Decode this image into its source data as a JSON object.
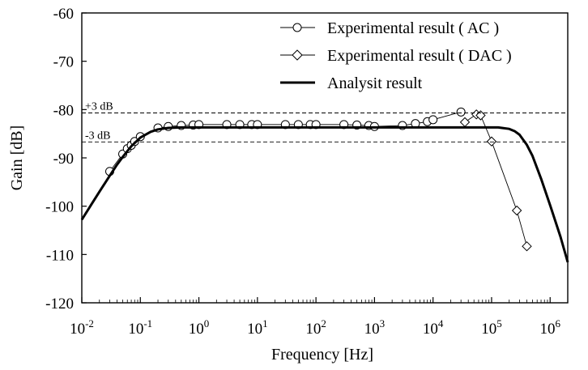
{
  "chart_data": {
    "type": "line",
    "xlabel": "Frequency [Hz]",
    "ylabel": "Gain [dB]",
    "x_scale": "log",
    "xlim": [
      0.01,
      2000000
    ],
    "ylim": [
      -120,
      -60
    ],
    "x_ticks": [
      {
        "value": 0.01,
        "base": "10",
        "exp": "-2"
      },
      {
        "value": 0.1,
        "base": "10",
        "exp": "-1"
      },
      {
        "value": 1,
        "base": "10",
        "exp": "0"
      },
      {
        "value": 10,
        "base": "10",
        "exp": "1"
      },
      {
        "value": 100,
        "base": "10",
        "exp": "2"
      },
      {
        "value": 1000,
        "base": "10",
        "exp": "3"
      },
      {
        "value": 10000,
        "base": "10",
        "exp": "4"
      },
      {
        "value": 100000,
        "base": "10",
        "exp": "5"
      },
      {
        "value": 1000000,
        "base": "10",
        "exp": "6"
      }
    ],
    "y_ticks": [
      {
        "value": -60,
        "label": "-60"
      },
      {
        "value": -70,
        "label": "-70"
      },
      {
        "value": -80,
        "label": "-80"
      },
      {
        "value": -90,
        "label": "-90"
      },
      {
        "value": -100,
        "label": "-100"
      },
      {
        "value": -110,
        "label": "-110"
      },
      {
        "value": -120,
        "label": "-120"
      }
    ],
    "grid": false,
    "legend_position": "top-right",
    "reference_lines": [
      {
        "y": -80.7,
        "label": "+3 dB",
        "style": "dashed"
      },
      {
        "y": -86.7,
        "label": "-3 dB",
        "style": "dashed"
      }
    ],
    "series": [
      {
        "name": "Experimental result ( AC )",
        "marker": "circle",
        "color": "#000000",
        "x": [
          0.03,
          0.05,
          0.06,
          0.07,
          0.08,
          0.1,
          0.2,
          0.3,
          0.5,
          0.8,
          1,
          3,
          5,
          8,
          10,
          30,
          50,
          80,
          100,
          300,
          500,
          800,
          1000,
          3000,
          5000,
          8000,
          10000,
          30000
        ],
        "y": [
          -92.8,
          -89.2,
          -88.1,
          -87.4,
          -86.6,
          -85.6,
          -83.8,
          -83.5,
          -83.3,
          -83.2,
          -83.1,
          -83.1,
          -83.1,
          -83.1,
          -83.1,
          -83.1,
          -83.1,
          -83.1,
          -83.1,
          -83.1,
          -83.2,
          -83.3,
          -83.5,
          -83.3,
          -82.9,
          -82.5,
          -82.1,
          -80.5
        ]
      },
      {
        "name": "Experimental result ( DAC )",
        "marker": "diamond",
        "color": "#000000",
        "x": [
          35000,
          55000,
          65000,
          100000,
          270000,
          400000
        ],
        "y": [
          -82.6,
          -81.0,
          -81.2,
          -86.6,
          -100.9,
          -108.3
        ]
      },
      {
        "name": "Analysit result",
        "marker": "none",
        "color": "#000000",
        "x": [
          0.01,
          0.015,
          0.02,
          0.03,
          0.04,
          0.05,
          0.07,
          0.1,
          0.15,
          0.2,
          0.3,
          0.5,
          1,
          10,
          100,
          1000,
          10000,
          50000,
          80000,
          100000,
          130000,
          150000,
          200000,
          250000,
          300000,
          400000,
          500000,
          700000,
          1000000,
          1500000,
          2000000
        ],
        "y": [
          -102.8,
          -99.4,
          -97.0,
          -93.7,
          -91.4,
          -89.8,
          -87.6,
          -85.8,
          -84.6,
          -84.1,
          -83.8,
          -83.7,
          -83.7,
          -83.7,
          -83.7,
          -83.7,
          -83.7,
          -83.7,
          -83.7,
          -83.7,
          -83.7,
          -83.8,
          -84.0,
          -84.5,
          -85.2,
          -87.3,
          -89.6,
          -94.3,
          -99.8,
          -106.3,
          -111.6
        ]
      }
    ]
  }
}
